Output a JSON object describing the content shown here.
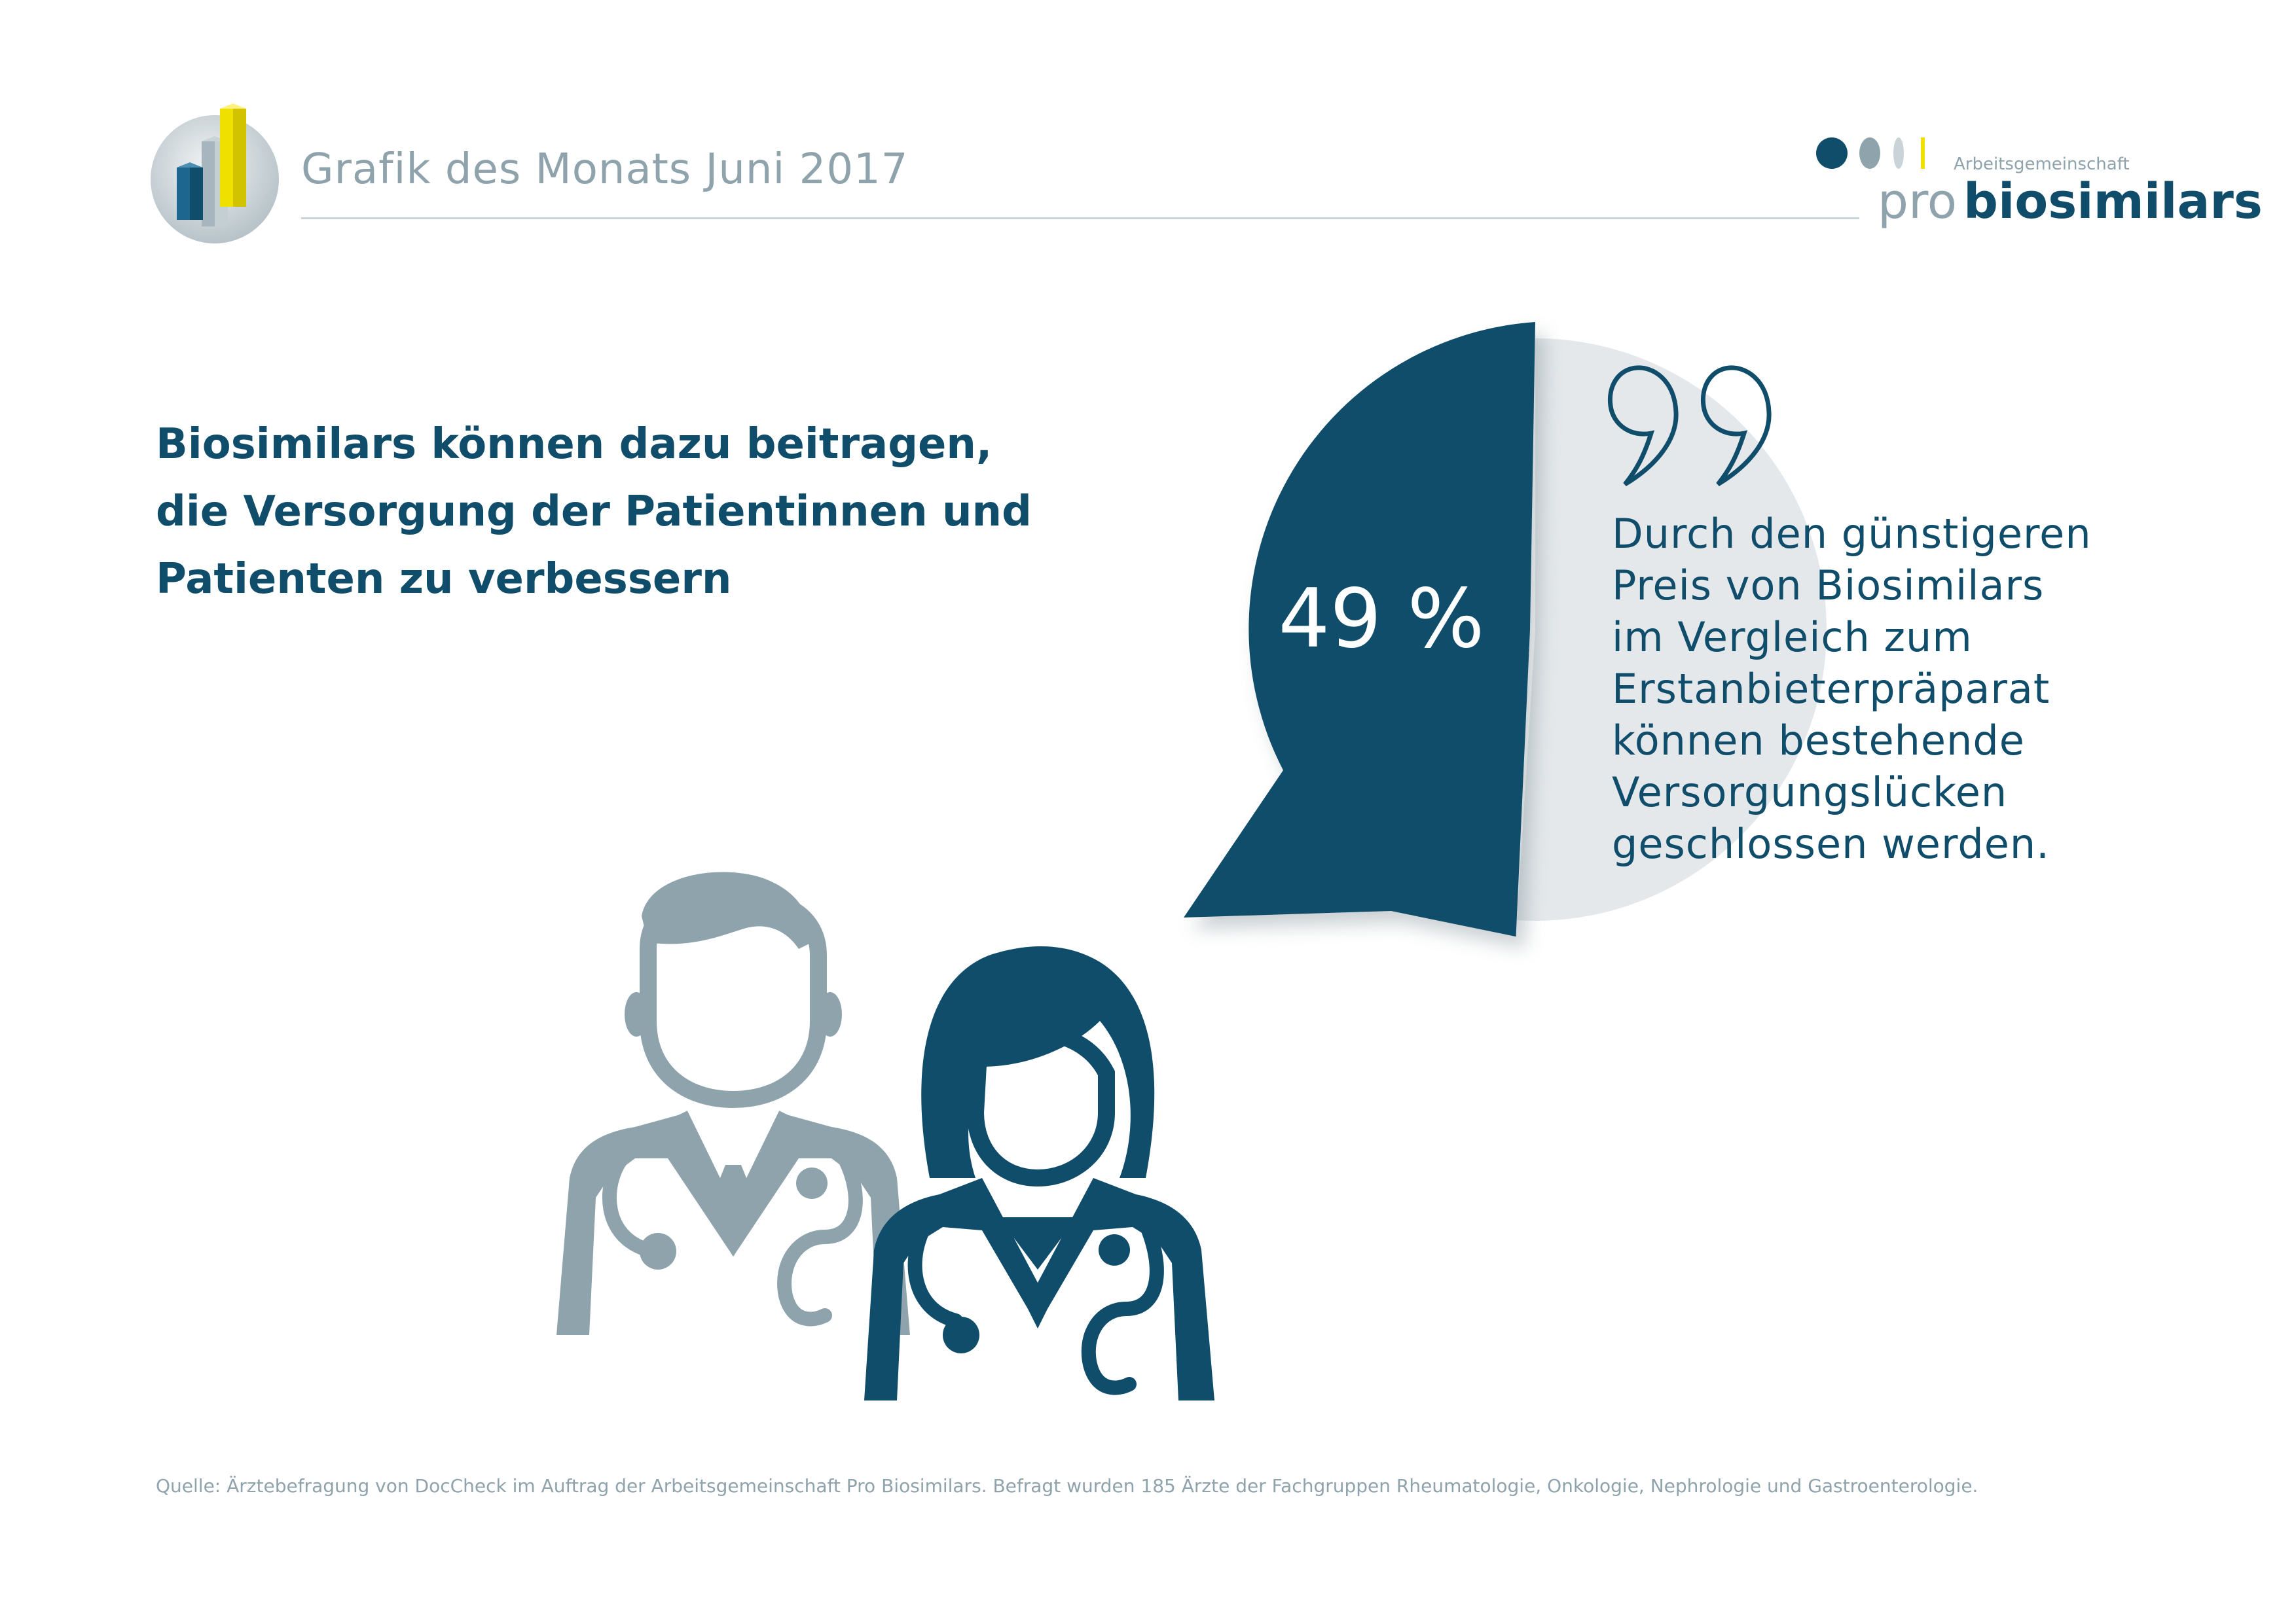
{
  "header": {
    "title": "Grafik des Monats Juni 2017"
  },
  "logo": {
    "supertitle": "Arbeitsgemeinschaft",
    "word_pro": "pro",
    "word_biosimilars": "biosimilars"
  },
  "headline": "Biosimilars können dazu beitragen, die Versorgung der Patientinnen und Patienten zu verbessern",
  "quote": {
    "lines": [
      "Durch den günstigeren",
      "Preis von Biosimilars",
      "im Vergleich zum",
      "Erstanbieterpräparat",
      "können bestehende",
      "Versorgungslücken",
      "geschlossen werden."
    ]
  },
  "chart_data": {
    "type": "pie",
    "slices": [
      {
        "value": 49,
        "color": "#0f4d6b"
      },
      {
        "value": 51,
        "color": "#e4e8eb"
      }
    ],
    "data_labels": [
      "49 %"
    ]
  },
  "source": "Quelle: Ärztebefragung von DocCheck im Auftrag der Arbeitsgemeinschaft Pro Biosimilars. Befragt wurden 185 Ärzte der Fachgruppen Rheumatologie, Onkologie, Nephrologie und Gastroenterologie.",
  "colors": {
    "primary": "#0f4d6b",
    "secondary": "#8fa3ad",
    "light": "#e4e8eb",
    "accent_yellow": "#f0e000"
  },
  "icons": [
    "bar-chart-badge-icon",
    "logo-dots-icon",
    "quote-marks-icon",
    "male-doctor-icon",
    "female-doctor-icon"
  ]
}
